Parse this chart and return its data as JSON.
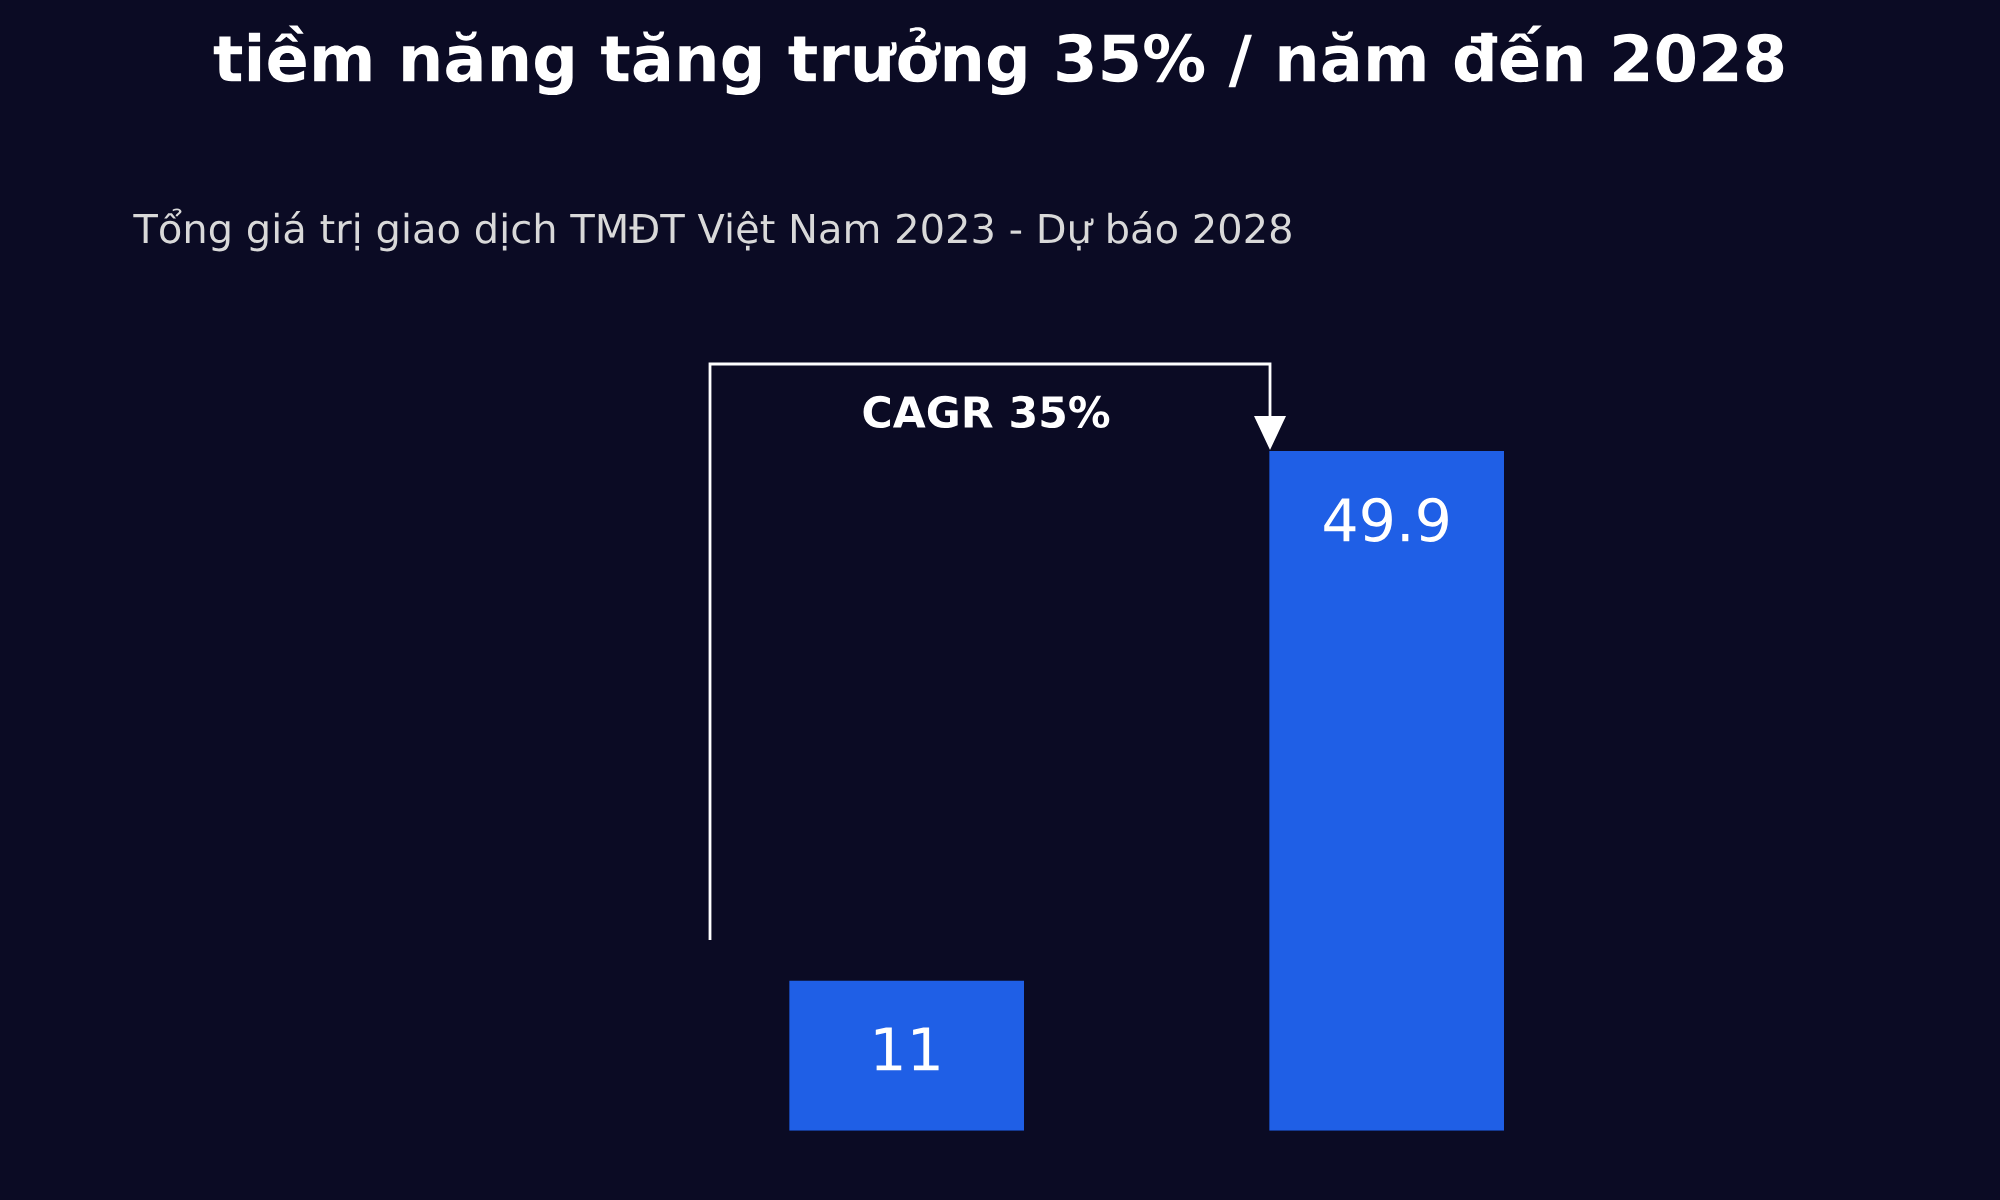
{
  "chart_data": {
    "type": "bar",
    "title": "tiềm năng tăng trưởng 35% / năm đến 2028",
    "subtitle": "Tổng giá trị giao dịch TMĐT Việt Nam 2023 - Dự báo 2028",
    "categories": [
      null,
      null
    ],
    "values": [
      11,
      49.9
    ],
    "color": "#1f5fe6",
    "data_labels": true,
    "annotations": [
      "CAGR 35%"
    ]
  }
}
